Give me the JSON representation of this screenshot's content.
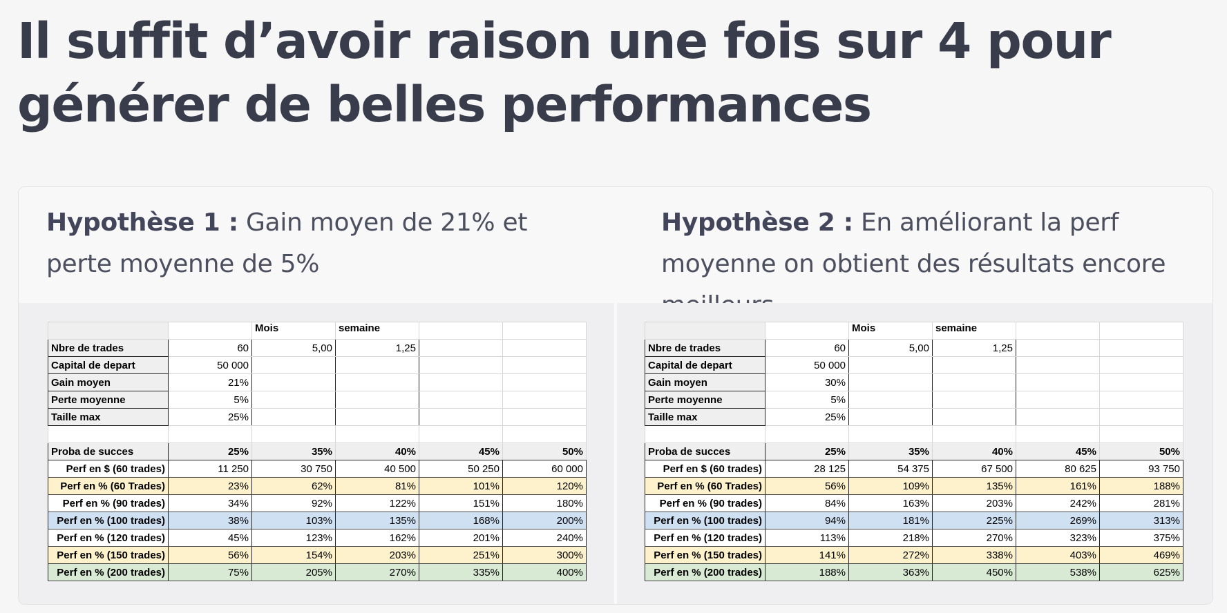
{
  "title": "Il suffit d’avoir raison une fois sur 4 pour générer de belles performances",
  "hyp1": {
    "label": "Hypothèse 1 :",
    "text": " Gain moyen de 21% et perte moyenne de 5%"
  },
  "hyp2": {
    "label": "Hypothèse 2 :",
    "text": " En améliorant la perf moyenne on obtient des résultats encore meilleurs"
  },
  "table1": {
    "header": [
      "",
      "",
      "Mois",
      "semaine",
      "",
      ""
    ],
    "params": [
      {
        "label": "Nbre de trades",
        "values": [
          "60",
          "5,00",
          "1,25"
        ]
      },
      {
        "label": "Capital de depart",
        "values": [
          "50 000",
          "",
          ""
        ]
      },
      {
        "label": "Gain moyen",
        "values": [
          "21%",
          "",
          ""
        ]
      },
      {
        "label": "Perte moyenne",
        "values": [
          "5%",
          "",
          ""
        ]
      },
      {
        "label": "Taille max",
        "values": [
          "25%",
          "",
          ""
        ]
      }
    ],
    "proba": {
      "label": "Proba de succes",
      "values": [
        "25%",
        "35%",
        "40%",
        "45%",
        "50%"
      ]
    },
    "rows": [
      {
        "label": "Perf en $ (60 trades)",
        "values": [
          "11 250",
          "30 750",
          "40 500",
          "50 250",
          "60 000"
        ],
        "color": "white"
      },
      {
        "label": "Perf en % (60 Trades)",
        "values": [
          "23%",
          "62%",
          "81%",
          "101%",
          "120%"
        ],
        "color": "yellow"
      },
      {
        "label": "Perf en % (90 trades)",
        "values": [
          "34%",
          "92%",
          "122%",
          "151%",
          "180%"
        ],
        "color": "white"
      },
      {
        "label": "Perf en % (100 trades)",
        "values": [
          "38%",
          "103%",
          "135%",
          "168%",
          "200%"
        ],
        "color": "blue"
      },
      {
        "label": "Perf en % (120 trades)",
        "values": [
          "45%",
          "123%",
          "162%",
          "201%",
          "240%"
        ],
        "color": "white"
      },
      {
        "label": "Perf en % (150 trades)",
        "values": [
          "56%",
          "154%",
          "203%",
          "251%",
          "300%"
        ],
        "color": "yellow"
      },
      {
        "label": "Perf en % (200 trades)",
        "values": [
          "75%",
          "205%",
          "270%",
          "335%",
          "400%"
        ],
        "color": "green"
      }
    ]
  },
  "table2": {
    "header": [
      "",
      "",
      "Mois",
      "semaine",
      "",
      ""
    ],
    "params": [
      {
        "label": "Nbre de trades",
        "values": [
          "60",
          "5,00",
          "1,25"
        ]
      },
      {
        "label": "Capital de depart",
        "values": [
          "50 000",
          "",
          ""
        ]
      },
      {
        "label": "Gain moyen",
        "values": [
          "30%",
          "",
          ""
        ]
      },
      {
        "label": "Perte moyenne",
        "values": [
          "5%",
          "",
          ""
        ]
      },
      {
        "label": "Taille max",
        "values": [
          "25%",
          "",
          ""
        ]
      }
    ],
    "proba": {
      "label": "Proba de succes",
      "values": [
        "25%",
        "35%",
        "40%",
        "45%",
        "50%"
      ]
    },
    "rows": [
      {
        "label": "Perf en $ (60 trades)",
        "values": [
          "28 125",
          "54 375",
          "67 500",
          "80 625",
          "93 750"
        ],
        "color": "white"
      },
      {
        "label": "Perf en % (60 Trades)",
        "values": [
          "56%",
          "109%",
          "135%",
          "161%",
          "188%"
        ],
        "color": "yellow"
      },
      {
        "label": "Perf en % (90 trades)",
        "values": [
          "84%",
          "163%",
          "203%",
          "242%",
          "281%"
        ],
        "color": "white"
      },
      {
        "label": "Perf en % (100 trades)",
        "values": [
          "94%",
          "181%",
          "225%",
          "269%",
          "313%"
        ],
        "color": "blue"
      },
      {
        "label": "Perf en % (120 trades)",
        "values": [
          "113%",
          "218%",
          "270%",
          "323%",
          "375%"
        ],
        "color": "white"
      },
      {
        "label": "Perf en % (150 trades)",
        "values": [
          "141%",
          "272%",
          "338%",
          "403%",
          "469%"
        ],
        "color": "yellow"
      },
      {
        "label": "Perf en % (200 trades)",
        "values": [
          "188%",
          "363%",
          "450%",
          "538%",
          "625%"
        ],
        "color": "green"
      }
    ]
  }
}
